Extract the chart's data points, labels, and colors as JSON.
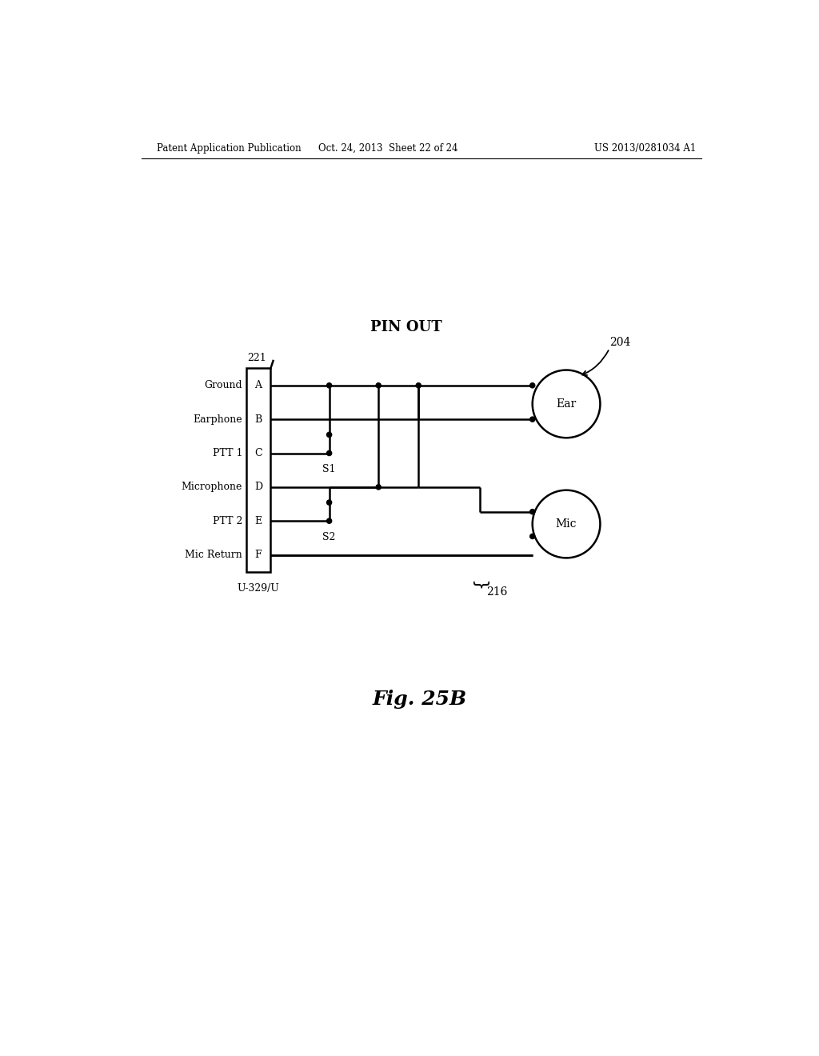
{
  "title": "Fig. 25B",
  "header_left": "Patent Application Publication",
  "header_center": "Oct. 24, 2013  Sheet 22 of 24",
  "header_right": "US 2013/0281034 A1",
  "pin_out_label": "PIN OUT",
  "connector_label": "221",
  "connector_bottom_label": "U-329/U",
  "label_204": "204",
  "label_216": "216",
  "pins": [
    "A",
    "B",
    "C",
    "D",
    "E",
    "F"
  ],
  "pin_labels": [
    "Ground",
    "Earphone",
    "PTT 1",
    "Microphone",
    "PTT 2",
    "Mic Return"
  ],
  "switch_labels": [
    "S1",
    "S2"
  ],
  "ear_label": "Ear",
  "mic_label": "Mic",
  "bg_color": "#ffffff",
  "line_color": "#000000",
  "lw": 1.8
}
